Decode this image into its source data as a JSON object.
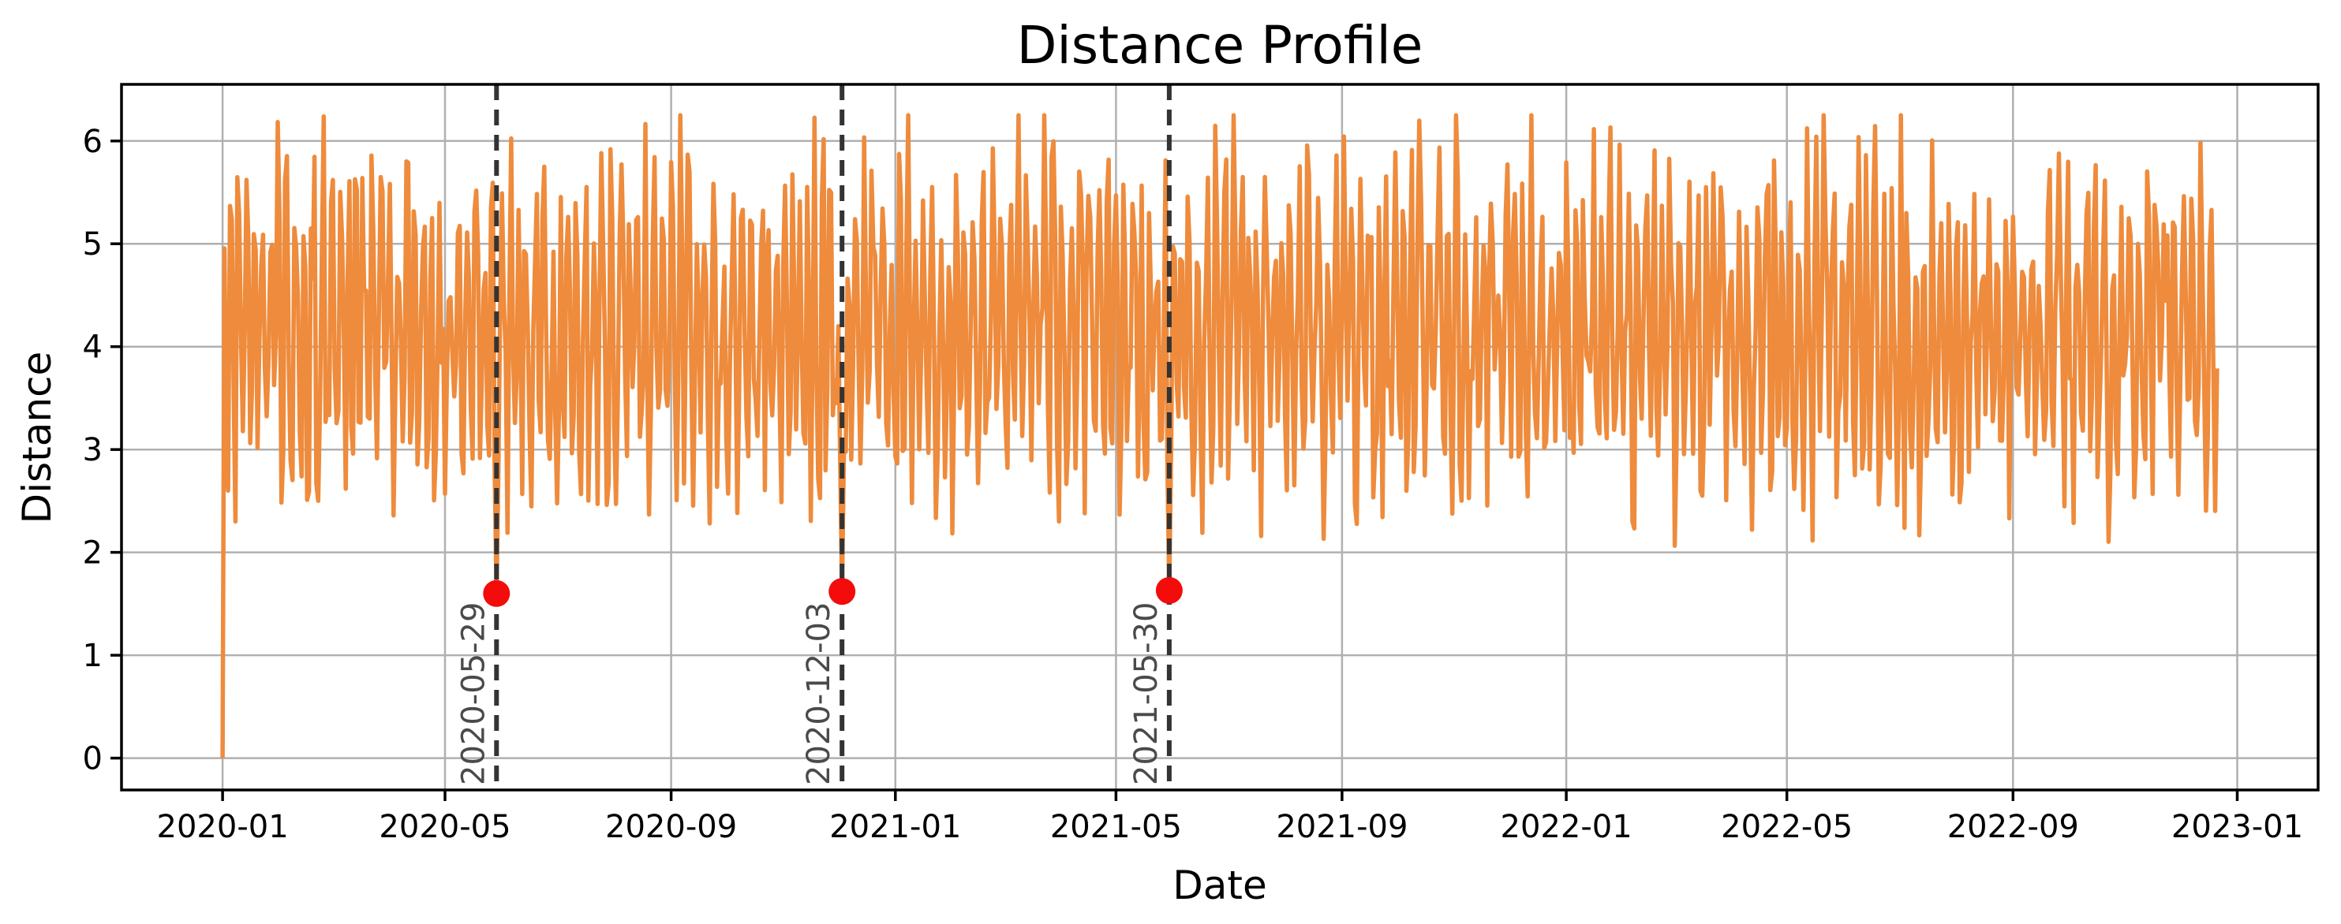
{
  "chart_data": {
    "type": "line",
    "title": "Distance Profile",
    "xlabel": "Date",
    "ylabel": "Distance",
    "x_tick_labels": [
      "2020-01",
      "2020-05",
      "2020-09",
      "2021-01",
      "2021-05",
      "2021-09",
      "2022-01",
      "2022-05",
      "2022-09",
      "2023-01"
    ],
    "x_tick_day_offsets": [
      0,
      121,
      244,
      366,
      486,
      609,
      731,
      851,
      974,
      1096
    ],
    "y_ticks": [
      0,
      1,
      2,
      3,
      4,
      5,
      6
    ],
    "ylim": [
      -0.31,
      6.55
    ],
    "xlim_day_offsets": [
      -55,
      1140
    ],
    "grid": true,
    "grid_color": "#b0b0b0",
    "line_color": "#ee8b3c",
    "line_width": 5.5,
    "series": {
      "name": "Distance",
      "start_date": "2020-01-01",
      "interval_days": 1,
      "n_points": 1086,
      "first_value": 0,
      "typical_range": [
        1.72,
        6.25
      ],
      "mean": 4.15,
      "generator": {
        "seed": 3,
        "mid": 4.15,
        "amp_base": 1.02,
        "amp_rand": 0.58,
        "noise": 1.5,
        "phase_step_min": 0.85,
        "phase_step_rand": 1.05,
        "vmin": 1.72,
        "vmax": 6.25
      }
    },
    "annotations": [
      {
        "label": "2020-05-29",
        "day_offset": 149,
        "marker_value": 1.6
      },
      {
        "label": "2020-12-03",
        "day_offset": 337,
        "marker_value": 1.62
      },
      {
        "label": "2021-05-30",
        "day_offset": 515,
        "marker_value": 1.63
      }
    ],
    "annotation_line_color": "#333333",
    "annotation_marker_color": "#f40b0b",
    "annotation_text_color": "#4a4a4a",
    "axis_color": "#000000",
    "tick_label_color": "#000000"
  }
}
